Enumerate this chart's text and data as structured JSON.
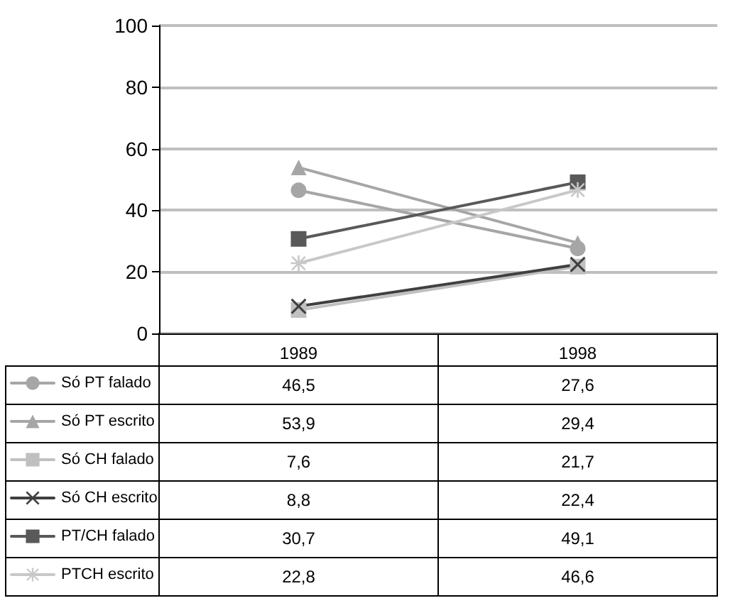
{
  "chart_data": {
    "type": "line",
    "categories": [
      "1989",
      "1998"
    ],
    "ylim": [
      0,
      100
    ],
    "yticks": [
      0,
      20,
      40,
      60,
      80,
      100
    ],
    "grid": "y",
    "legend": "bottom left",
    "series": [
      {
        "name": "Só PT falado",
        "color": "#a6a6a6",
        "marker": "circle",
        "values": [
          46.5,
          27.6
        ],
        "value_labels": [
          "46,5",
          "27,6"
        ]
      },
      {
        "name": "Só PT escrito",
        "color": "#a6a6a6",
        "marker": "triangle",
        "values": [
          53.9,
          29.4
        ],
        "value_labels": [
          "53,9",
          "29,4"
        ]
      },
      {
        "name": "Só CH falado",
        "color": "#c0c0c0",
        "marker": "square",
        "values": [
          7.6,
          21.7
        ],
        "value_labels": [
          "7,6",
          "21,7"
        ]
      },
      {
        "name": "Só CH escrito",
        "color": "#404040",
        "marker": "cross",
        "values": [
          8.8,
          22.4
        ],
        "value_labels": [
          "8,8",
          "22,4"
        ]
      },
      {
        "name": "PT/CH falado",
        "color": "#595959",
        "marker": "square",
        "values": [
          30.7,
          49.1
        ],
        "value_labels": [
          "30,7",
          "49,1"
        ]
      },
      {
        "name": "PTCH escrito",
        "color": "#c8c8c8",
        "marker": "star",
        "values": [
          22.8,
          46.6
        ],
        "value_labels": [
          "22,8",
          "46,6"
        ]
      }
    ]
  }
}
